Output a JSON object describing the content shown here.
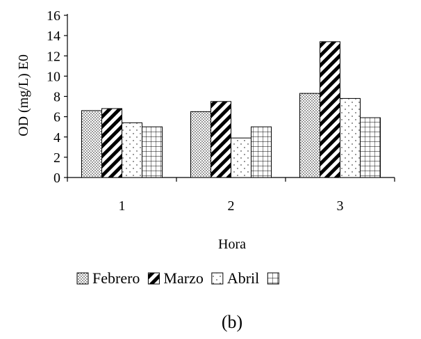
{
  "chart_data": {
    "type": "bar",
    "categories": [
      "1",
      "2",
      "3"
    ],
    "series": [
      {
        "name": "Febrero",
        "values": [
          6.6,
          6.5,
          8.3
        ],
        "pattern": "dots"
      },
      {
        "name": "Marzo",
        "values": [
          6.8,
          7.5,
          13.4
        ],
        "pattern": "diagonal"
      },
      {
        "name": "Abril",
        "values": [
          5.4,
          3.9,
          7.8
        ],
        "pattern": "sparse-dots"
      },
      {
        "name": "",
        "values": [
          5.0,
          5.0,
          5.9
        ],
        "pattern": "grid"
      }
    ],
    "xlabel": "Hora",
    "ylabel": "OD (mg/L)  E0",
    "ylim": [
      0,
      16
    ],
    "yticks": [
      "0",
      "2",
      "4",
      "6",
      "8",
      "10",
      "12",
      "14",
      "16"
    ],
    "grid": false,
    "legend_position": "bottom",
    "caption": "(b)",
    "colors": {
      "stroke": "#000000",
      "fill": "#ffffff"
    }
  }
}
